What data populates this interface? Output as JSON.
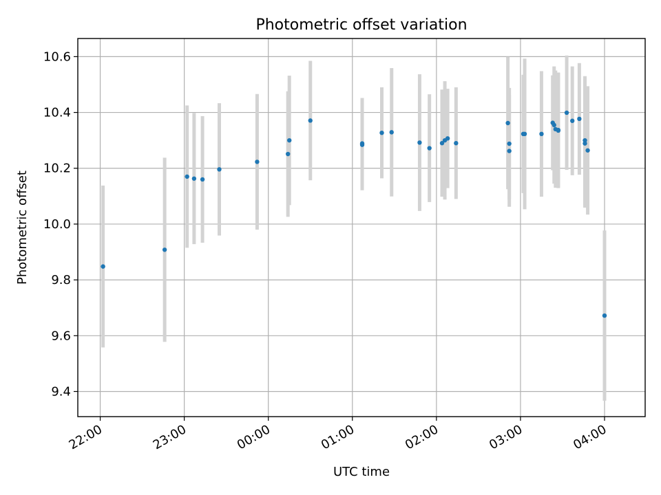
{
  "chart_data": {
    "type": "scatter",
    "title": "Photometric offset variation",
    "xlabel": "UTC time",
    "ylabel": "Photometric offset",
    "xlim": [
      "21:44",
      "04:29"
    ],
    "ylim": [
      9.31,
      10.665
    ],
    "grid": true,
    "x_ticks": [
      "22:00",
      "23:00",
      "00:00",
      "01:00",
      "02:00",
      "03:00",
      "04:00"
    ],
    "y_ticks": [
      "9.4",
      "9.6",
      "9.8",
      "10.0",
      "10.2",
      "10.4",
      "10.6"
    ],
    "errorbar_color": "#d3d3d3",
    "point_color": "#1f77b4",
    "series": [
      {
        "x": [
          "22:02",
          "22:46",
          "23:02",
          "23:07",
          "23:13",
          "23:25",
          "23:52",
          "00:14",
          "00:15",
          "00:30",
          "01:07",
          "01:07",
          "01:21",
          "01:28",
          "01:48",
          "01:55",
          "02:04",
          "02:06",
          "02:08",
          "02:14",
          "02:51",
          "02:52",
          "02:52",
          "03:02",
          "03:03",
          "03:15",
          "03:23",
          "03:24",
          "03:25",
          "03:27",
          "03:27",
          "03:33",
          "03:37",
          "03:42",
          "03:46",
          "03:46",
          "03:48",
          "04:00"
        ],
        "y": [
          9.848,
          9.908,
          10.17,
          10.163,
          10.16,
          10.196,
          10.223,
          10.251,
          10.3,
          10.371,
          10.284,
          10.289,
          10.327,
          10.329,
          10.292,
          10.272,
          10.29,
          10.3,
          10.307,
          10.29,
          10.362,
          10.262,
          10.288,
          10.323,
          10.323,
          10.323,
          10.363,
          10.355,
          10.34,
          10.337,
          10.335,
          10.399,
          10.37,
          10.377,
          10.3,
          10.289,
          10.264,
          9.672
        ],
        "yerr": [
          0.29,
          0.33,
          0.255,
          0.235,
          0.227,
          0.237,
          0.243,
          0.225,
          0.232,
          0.214,
          0.163,
          0.163,
          0.163,
          0.23,
          0.245,
          0.193,
          0.192,
          0.212,
          0.178,
          0.2,
          0.237,
          0.2,
          0.2,
          0.212,
          0.27,
          0.225,
          0.17,
          0.21,
          0.21,
          0.206,
          0.206,
          0.205,
          0.195,
          0.2,
          0.23,
          0.23,
          0.23,
          0.305
        ]
      }
    ]
  }
}
